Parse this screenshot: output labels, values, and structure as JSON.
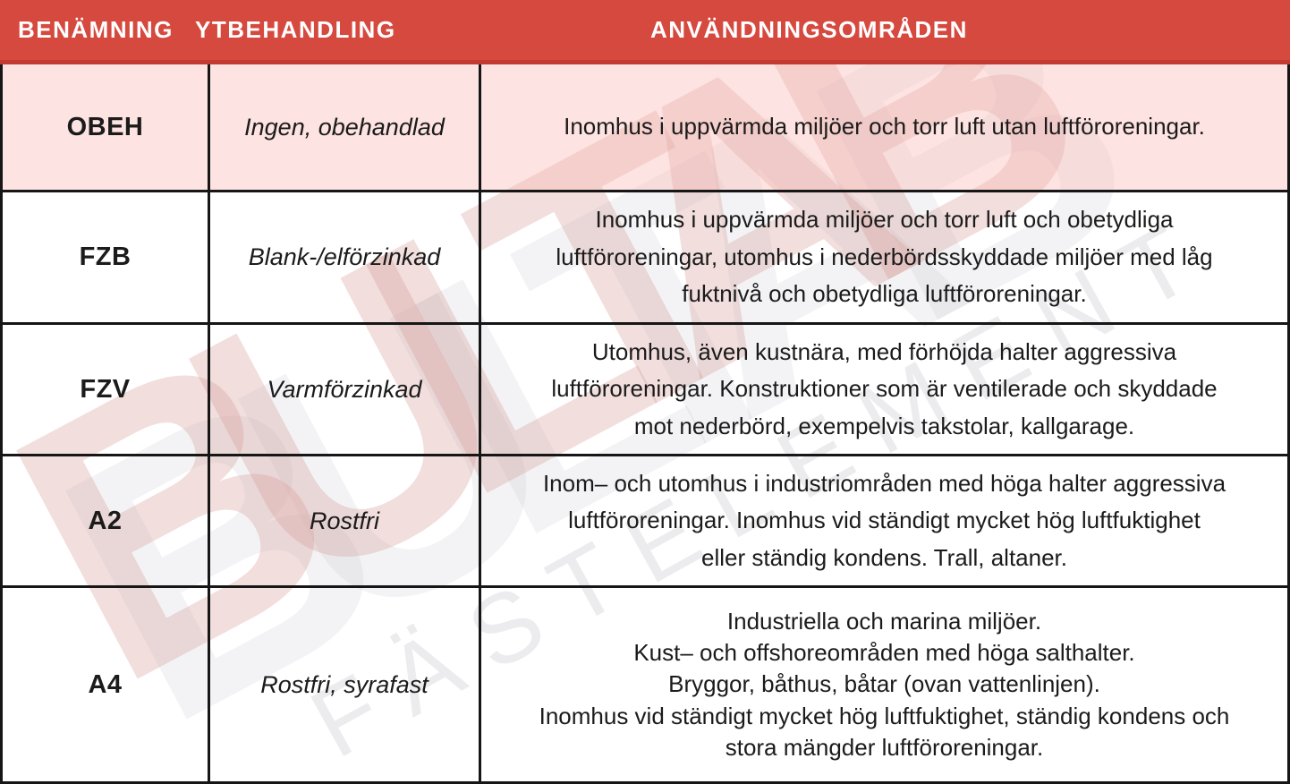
{
  "watermark": {
    "brand": "BULTAB",
    "tagline": "FÄSTELEMENT"
  },
  "header": {
    "columns": [
      "BENÄMNING",
      "YTBEHANDLING",
      "ANVÄNDNINGSOMRÅDEN"
    ]
  },
  "rows": [
    {
      "code": "OBEH",
      "surface": "Ingen, obehandlad",
      "usage": "Inomhus i uppvärmda miljöer och torr luft utan luftföroreningar.",
      "highlighted": true
    },
    {
      "code": "FZB",
      "surface": "Blank-/elförzinkad",
      "usage": "Inomhus i uppvärmda miljöer och torr luft och obetydliga\nluftföroreningar, utomhus i nederbördsskyddade miljöer med låg\nfuktnivå och obetydliga luftföroreningar.",
      "highlighted": false
    },
    {
      "code": "FZV",
      "surface": "Varmförzinkad",
      "usage": "Utomhus, även kustnära, med förhöjda halter aggressiva\nluftföroreningar. Konstruktioner som är ventilerade och skyddade\nmot nederbörd, exempelvis takstolar, kallgarage.",
      "highlighted": false
    },
    {
      "code": "A2",
      "surface": "Rostfri",
      "usage": "Inom– och utomhus i industriområden med höga halter aggressiva\nluftföroreningar. Inomhus vid ständigt mycket hög luftfuktighet\neller ständig kondens. Trall, altaner.",
      "highlighted": false
    },
    {
      "code": "A4",
      "surface": "Rostfri, syrafast",
      "usage": "Industriella och marina miljöer.\nKust– och offshoreområden med höga salthalter.\nBryggor, båthus, båtar (ovan vattenlinjen).\nInomhus vid ständigt mycket hög luftfuktighet, ständig kondens och\nstora mängder luftföroreningar.",
      "highlighted": false
    }
  ],
  "colors": {
    "header_bg": "#d6493f",
    "header_bottom_edge": "#c23a31",
    "header_text": "#ffffff",
    "highlight_row_bg": "#fbdcdb",
    "row_bg": "#ffffff",
    "grid_border": "#161616",
    "body_text": "#1b1b1b",
    "watermark_red": "#d6493f",
    "watermark_gray": "#5f5f6e"
  }
}
